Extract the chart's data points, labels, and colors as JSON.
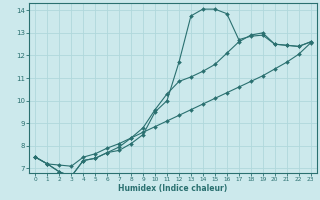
{
  "xlabel": "Humidex (Indice chaleur)",
  "xlim": [
    -0.5,
    23.5
  ],
  "ylim": [
    6.8,
    14.3
  ],
  "background_color": "#cce9ec",
  "grid_color": "#b0d8dc",
  "line_color": "#2a7070",
  "xticks": [
    0,
    1,
    2,
    3,
    4,
    5,
    6,
    7,
    8,
    9,
    10,
    11,
    12,
    13,
    14,
    15,
    16,
    17,
    18,
    19,
    20,
    21,
    22,
    23
  ],
  "yticks": [
    7,
    8,
    9,
    10,
    11,
    12,
    13,
    14
  ],
  "line1_x": [
    0,
    1,
    2,
    3,
    4,
    5,
    6,
    7,
    8,
    9,
    10,
    11,
    12,
    13,
    14,
    15,
    16,
    17,
    18,
    19,
    20,
    21,
    22,
    23
  ],
  "line1_y": [
    7.5,
    7.2,
    6.85,
    6.65,
    7.35,
    7.45,
    7.7,
    7.8,
    8.1,
    8.5,
    9.5,
    10.0,
    11.7,
    13.75,
    14.05,
    14.05,
    13.85,
    12.7,
    12.85,
    12.9,
    12.5,
    12.45,
    12.4,
    12.6
  ],
  "line2_x": [
    0,
    1,
    2,
    3,
    4,
    5,
    6,
    7,
    8,
    9,
    10,
    11,
    12,
    13,
    14,
    15,
    16,
    17,
    18,
    19,
    20,
    21,
    22,
    23
  ],
  "line2_y": [
    7.5,
    7.2,
    6.85,
    6.65,
    7.35,
    7.45,
    7.7,
    7.95,
    8.35,
    8.8,
    9.6,
    10.3,
    10.85,
    11.05,
    11.3,
    11.6,
    12.1,
    12.6,
    12.9,
    13.0,
    12.5,
    12.45,
    12.4,
    12.6
  ],
  "line3_x": [
    0,
    1,
    2,
    3,
    4,
    5,
    6,
    7,
    8,
    9,
    10,
    11,
    12,
    13,
    14,
    15,
    16,
    17,
    18,
    19,
    20,
    21,
    22,
    23
  ],
  "line3_y": [
    7.5,
    7.2,
    7.15,
    7.1,
    7.5,
    7.65,
    7.9,
    8.1,
    8.35,
    8.6,
    8.85,
    9.1,
    9.35,
    9.6,
    9.85,
    10.1,
    10.35,
    10.6,
    10.85,
    11.1,
    11.4,
    11.7,
    12.05,
    12.55
  ]
}
